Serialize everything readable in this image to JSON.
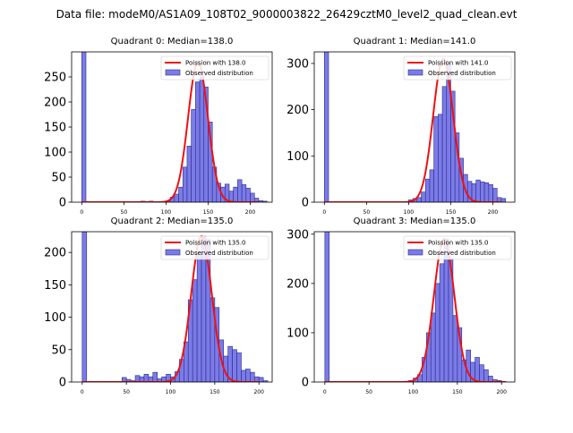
{
  "figure": {
    "suptitle": "Data file: modeM0/AS1A09_108T02_9000003822_26429cztM0_level2_quad_clean.evt"
  },
  "colors": {
    "bar_fill": "#7b7be8",
    "bar_edge": "#2a2a8a",
    "poisson_line": "#ee1111"
  },
  "chart_data": [
    {
      "type": "bar",
      "title": "Quadrant 0: Median=138.0",
      "legend": [
        "Poission with 138.0",
        "Observed distribution"
      ],
      "legend_position": "top-right",
      "xlim": [
        -12,
        226
      ],
      "ylim": [
        0,
        300
      ],
      "xticks": [
        0,
        50,
        100,
        150,
        200
      ],
      "yticks": [
        0,
        50,
        100,
        150,
        200,
        250
      ],
      "bin_width": 5,
      "bins": [
        [
          0,
          300
        ],
        [
          65,
          1
        ],
        [
          70,
          2
        ],
        [
          80,
          2
        ],
        [
          100,
          3
        ],
        [
          105,
          10
        ],
        [
          110,
          16
        ],
        [
          115,
          30
        ],
        [
          120,
          70
        ],
        [
          125,
          112
        ],
        [
          130,
          185
        ],
        [
          135,
          240
        ],
        [
          140,
          250
        ],
        [
          145,
          230
        ],
        [
          150,
          160
        ],
        [
          155,
          70
        ],
        [
          160,
          38
        ],
        [
          165,
          30
        ],
        [
          170,
          36
        ],
        [
          175,
          22
        ],
        [
          180,
          30
        ],
        [
          185,
          45
        ],
        [
          190,
          35
        ],
        [
          195,
          28
        ],
        [
          200,
          18
        ],
        [
          205,
          8
        ],
        [
          210,
          3
        ],
        [
          215,
          2
        ]
      ],
      "poisson_mean": 138.0,
      "poisson_peak": 280,
      "poisson_x": [
        0,
        210
      ]
    },
    {
      "type": "bar",
      "title": "Quadrant 1: Median=141.0",
      "legend": [
        "Poission with 141.0",
        "Observed distribution"
      ],
      "legend_position": "top-right",
      "xlim": [
        -12,
        226
      ],
      "ylim": [
        0,
        325
      ],
      "xticks": [
        0,
        50,
        100,
        150,
        200
      ],
      "yticks": [
        0,
        100,
        200,
        300
      ],
      "bin_width": 5,
      "bins": [
        [
          0,
          325
        ],
        [
          100,
          5
        ],
        [
          105,
          8
        ],
        [
          110,
          10
        ],
        [
          115,
          22
        ],
        [
          120,
          50
        ],
        [
          125,
          70
        ],
        [
          130,
          185
        ],
        [
          135,
          190
        ],
        [
          140,
          250
        ],
        [
          145,
          300
        ],
        [
          150,
          240
        ],
        [
          155,
          150
        ],
        [
          160,
          95
        ],
        [
          165,
          60
        ],
        [
          170,
          45
        ],
        [
          175,
          40
        ],
        [
          180,
          48
        ],
        [
          185,
          44
        ],
        [
          190,
          42
        ],
        [
          195,
          38
        ],
        [
          200,
          30
        ],
        [
          205,
          10
        ],
        [
          210,
          8
        ]
      ],
      "poisson_mean": 141.0,
      "poisson_peak": 310,
      "poisson_x": [
        0,
        210
      ]
    },
    {
      "type": "bar",
      "title": "Quadrant 2: Median=135.0",
      "legend": [
        "Poission with 135.0",
        "Observed distribution"
      ],
      "legend_position": "top-right",
      "xlim": [
        -12,
        215
      ],
      "ylim": [
        0,
        232
      ],
      "xticks": [
        0,
        50,
        100,
        150,
        200
      ],
      "yticks": [
        0,
        50,
        100,
        150,
        200
      ],
      "bin_width": 5,
      "bins": [
        [
          0,
          232
        ],
        [
          30,
          1
        ],
        [
          45,
          7
        ],
        [
          50,
          4
        ],
        [
          55,
          2
        ],
        [
          60,
          10
        ],
        [
          65,
          8
        ],
        [
          70,
          12
        ],
        [
          75,
          8
        ],
        [
          80,
          15
        ],
        [
          85,
          5
        ],
        [
          90,
          8
        ],
        [
          95,
          12
        ],
        [
          100,
          8
        ],
        [
          105,
          16
        ],
        [
          110,
          35
        ],
        [
          115,
          62
        ],
        [
          120,
          127
        ],
        [
          125,
          158
        ],
        [
          130,
          200
        ],
        [
          135,
          225
        ],
        [
          140,
          220
        ],
        [
          145,
          130
        ],
        [
          150,
          115
        ],
        [
          155,
          65
        ],
        [
          160,
          40
        ],
        [
          165,
          55
        ],
        [
          170,
          50
        ],
        [
          175,
          45
        ],
        [
          180,
          18
        ],
        [
          185,
          20
        ],
        [
          190,
          15
        ],
        [
          195,
          8
        ],
        [
          200,
          7
        ],
        [
          205,
          2
        ]
      ],
      "poisson_mean": 135.0,
      "poisson_peak": 225,
      "poisson_x": [
        0,
        200
      ]
    },
    {
      "type": "bar",
      "title": "Quadrant 3: Median=135.0",
      "legend": [
        "Poission with 135.0",
        "Observed distribution"
      ],
      "legend_position": "top-right",
      "xlim": [
        -12,
        215
      ],
      "ylim": [
        0,
        305
      ],
      "xticks": [
        0,
        50,
        100,
        150,
        200
      ],
      "yticks": [
        0,
        100,
        200,
        300
      ],
      "bin_width": 5,
      "bins": [
        [
          0,
          305
        ],
        [
          65,
          1
        ],
        [
          80,
          1
        ],
        [
          95,
          3
        ],
        [
          100,
          8
        ],
        [
          105,
          15
        ],
        [
          110,
          50
        ],
        [
          115,
          100
        ],
        [
          120,
          140
        ],
        [
          125,
          200
        ],
        [
          130,
          240
        ],
        [
          135,
          290
        ],
        [
          140,
          250
        ],
        [
          145,
          135
        ],
        [
          150,
          110
        ],
        [
          155,
          45
        ],
        [
          160,
          65
        ],
        [
          165,
          40
        ],
        [
          170,
          50
        ],
        [
          175,
          35
        ],
        [
          180,
          25
        ],
        [
          185,
          12
        ],
        [
          190,
          5
        ],
        [
          195,
          3
        ],
        [
          200,
          1
        ]
      ],
      "poisson_mean": 135.0,
      "poisson_peak": 290,
      "poisson_x": [
        0,
        205
      ]
    }
  ]
}
